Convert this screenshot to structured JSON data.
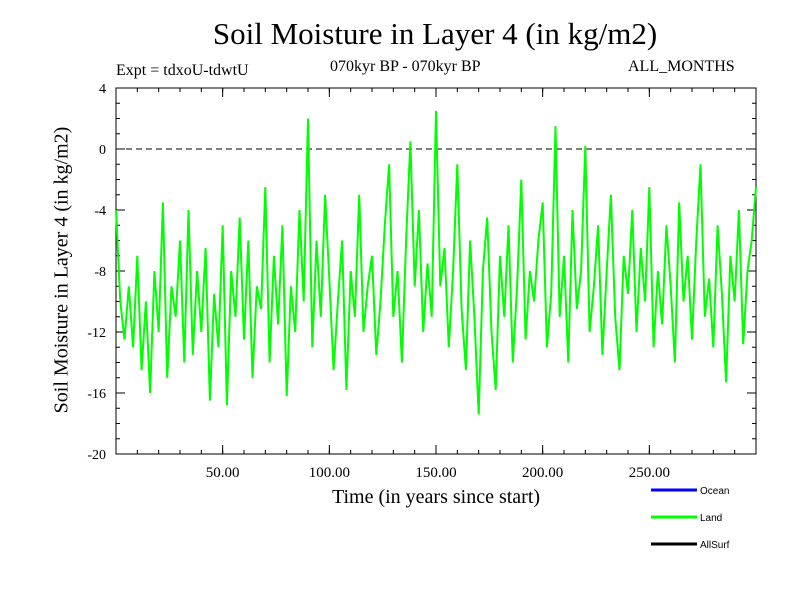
{
  "header": {
    "title": "Soil Moisture in Layer 4 (in kg/m2)",
    "expt": "Expt = tdxoU-tdwtU",
    "period": "070kyr BP - 070kyr BP",
    "months": "ALL_MONTHS"
  },
  "chart_data": {
    "type": "line",
    "title": "Soil Moisture in Layer 4 (in kg/m2)",
    "xlabel": "Time (in years since start)",
    "ylabel": "Soil Moisture in Layer 4 (in kg/m2)",
    "xlim": [
      0,
      300
    ],
    "ylim": [
      -20,
      4
    ],
    "x_ticks": [
      {
        "value": 50,
        "label": "50.00"
      },
      {
        "value": 100,
        "label": "100.00"
      },
      {
        "value": 150,
        "label": "150.00"
      },
      {
        "value": 200,
        "label": "200.00"
      },
      {
        "value": 250,
        "label": "250.00"
      }
    ],
    "y_ticks": [
      {
        "value": 4,
        "label": "4"
      },
      {
        "value": 0,
        "label": "0"
      },
      {
        "value": -4,
        "label": "-4"
      },
      {
        "value": -8,
        "label": "-8"
      },
      {
        "value": -12,
        "label": "-12"
      },
      {
        "value": -16,
        "label": "-16"
      },
      {
        "value": -20,
        "label": "-20"
      }
    ],
    "reference_line": {
      "y": 0,
      "style": "dashed"
    },
    "legend": [
      {
        "name": "Ocean",
        "color": "#0000ff"
      },
      {
        "name": "Land",
        "color": "#00ff00"
      },
      {
        "name": "AllSurf",
        "color": "#000000"
      }
    ],
    "series": [
      {
        "name": "Land",
        "color": "#00ff00",
        "x": [
          0,
          2,
          4,
          6,
          8,
          10,
          12,
          14,
          16,
          18,
          20,
          22,
          24,
          26,
          28,
          30,
          32,
          34,
          36,
          38,
          40,
          42,
          44,
          46,
          48,
          50,
          52,
          54,
          56,
          58,
          60,
          62,
          64,
          66,
          68,
          70,
          72,
          74,
          76,
          78,
          80,
          82,
          84,
          86,
          88,
          90,
          92,
          94,
          96,
          98,
          100,
          102,
          104,
          106,
          108,
          110,
          112,
          114,
          116,
          118,
          120,
          122,
          124,
          126,
          128,
          130,
          132,
          134,
          136,
          138,
          140,
          142,
          144,
          146,
          148,
          150,
          152,
          154,
          156,
          158,
          160,
          162,
          164,
          166,
          168,
          170,
          172,
          174,
          176,
          178,
          180,
          182,
          184,
          186,
          188,
          190,
          192,
          194,
          196,
          198,
          200,
          202,
          204,
          206,
          208,
          210,
          212,
          214,
          216,
          218,
          220,
          222,
          224,
          226,
          228,
          230,
          232,
          234,
          236,
          238,
          240,
          242,
          244,
          246,
          248,
          250,
          252,
          254,
          256,
          258,
          260,
          262,
          264,
          266,
          268,
          270,
          272,
          274,
          276,
          278,
          280,
          282,
          284,
          286,
          288,
          290,
          292,
          294,
          296,
          298,
          300
        ],
        "y": [
          -4,
          -10,
          -12.5,
          -9,
          -13,
          -7,
          -14.5,
          -10,
          -16,
          -8,
          -12,
          -3.5,
          -15,
          -9,
          -11,
          -6,
          -14,
          -4,
          -13.5,
          -8,
          -12,
          -6.5,
          -16.5,
          -9.5,
          -13,
          -5,
          -16.8,
          -8,
          -11,
          -4.5,
          -12.5,
          -6,
          -15,
          -9,
          -10.5,
          -2.5,
          -14,
          -7,
          -11.5,
          -5,
          -16.2,
          -9,
          -12,
          -4,
          -10,
          2,
          -13,
          -6,
          -11,
          -3,
          -8.5,
          -14.5,
          -10,
          -6,
          -15.8,
          -8,
          -11,
          -3,
          -12,
          -9,
          -7,
          -13.5,
          -10,
          -5,
          -1,
          -11,
          -8,
          -14,
          -6,
          0.5,
          -9,
          -4,
          -12,
          -7.5,
          -11,
          2.5,
          -9,
          -6.5,
          -13,
          -8,
          -1,
          -10.5,
          -14.5,
          -6,
          -11,
          -17.4,
          -8,
          -4.5,
          -12,
          -15.8,
          -7,
          -11,
          -5,
          -14,
          -9,
          -2,
          -12.5,
          -8,
          -10,
          -6,
          -3.5,
          -13,
          -9.5,
          1.5,
          -11,
          -7,
          -14,
          -4,
          -10.5,
          -8,
          0.2,
          -12,
          -9,
          -5,
          -13.5,
          -8,
          -3,
          -11,
          -14.5,
          -7,
          -9.5,
          -4,
          -12,
          -6.5,
          -10,
          -2.5,
          -13,
          -8,
          -11.5,
          -5,
          -9,
          -14,
          -3.5,
          -10,
          -7,
          -12.5,
          -6,
          -1,
          -11,
          -8.5,
          -13,
          -5,
          -9.5,
          -15.3,
          -7,
          -10,
          -4,
          -12.8,
          -8,
          -6,
          -2.5
        ]
      },
      {
        "name": "Ocean",
        "color": "#0000ff",
        "x": [],
        "y": []
      },
      {
        "name": "AllSurf",
        "color": "#000000",
        "x": [],
        "y": []
      }
    ]
  }
}
